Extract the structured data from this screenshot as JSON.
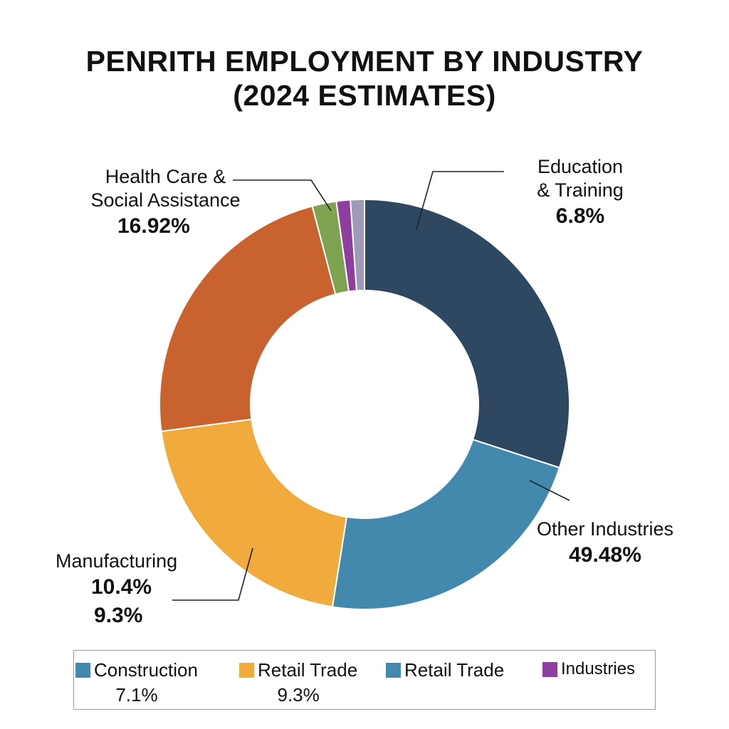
{
  "title": {
    "line1": "PENRITH EMPLOYMENT BY INDUSTRY",
    "line2": "(2024 ESTIMATES)"
  },
  "chart_data": {
    "type": "pie",
    "title": "PENRITH EMPLOYMENT BY INDUSTRY (2024 ESTIMATES)",
    "donut": true,
    "slices": [
      {
        "value": 30.0,
        "color": "#2d4860"
      },
      {
        "value": 22.5,
        "color": "#4389ae"
      },
      {
        "value": 20.4,
        "color": "#f0ab3c"
      },
      {
        "value": 23.0,
        "color": "#c8622e"
      },
      {
        "value": 1.9,
        "color": "#7ea350"
      },
      {
        "value": 1.1,
        "color": "#8e3e9e"
      },
      {
        "value": 1.1,
        "color": "#9e9ab8"
      }
    ],
    "annotations": {
      "education": {
        "name_line1": "Education",
        "name_line2": "& Training",
        "value": "6.8%"
      },
      "other": {
        "name": "Other Industries",
        "value": "49.48%"
      },
      "manufacturing": {
        "name": "Manufacturing",
        "value1": "10.4%",
        "value2": "9.3%"
      },
      "health": {
        "name_line1": "Health Care &",
        "name_line2": "Social Assistance",
        "value": "16.92%"
      }
    },
    "legend": {
      "placement": "bottom",
      "items": [
        {
          "label": "Construction",
          "value": "7.1%",
          "color": "#4389ae"
        },
        {
          "label": "Retail Trade",
          "value": "9.3%",
          "color": "#f0ab3c"
        },
        {
          "label": "Retail Trade",
          "value": "",
          "color": "#4389ae"
        },
        {
          "label": "Industries",
          "value": "",
          "color": "#8e3e9e"
        }
      ]
    }
  }
}
